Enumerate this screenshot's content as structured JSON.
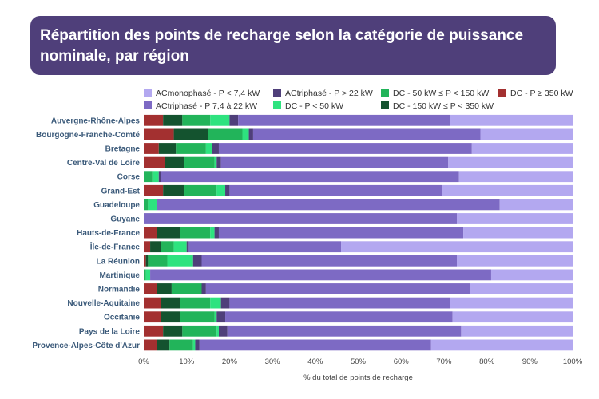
{
  "title": "Répartition des points de recharge selon la catégorie de puissance nominale, par région",
  "chart_data": {
    "type": "bar",
    "orientation": "horizontal",
    "stacked": true,
    "title": "Répartition des points de recharge selon la catégorie de puissance nominale, par région",
    "xlabel": "% du total de points de recharge",
    "ylabel": "",
    "xlim": [
      0,
      100
    ],
    "ticks": [
      "0%",
      "10%",
      "20%",
      "30%",
      "40%",
      "50%",
      "60%",
      "70%",
      "80%",
      "90%",
      "100%"
    ],
    "legend_position": "top",
    "legend": [
      {
        "name": "ACmonophasé - P < 7,4 kW",
        "color": "#b3a8f0"
      },
      {
        "name": "ACtriphasé - P 7,4 à 22 kW",
        "color": "#7d6ac4"
      },
      {
        "name": "ACtriphasé - P > 22 kW",
        "color": "#4f3f7a"
      },
      {
        "name": "DC - P < 50 kW",
        "color": "#2ee37f"
      },
      {
        "name": "DC - 50 kW ≤ P < 150 kW",
        "color": "#22b45a"
      },
      {
        "name": "DC - 150 kW ≤ P < 350 kW",
        "color": "#14532f"
      },
      {
        "name": "DC - P ≥ 350 kW",
        "color": "#a33030"
      }
    ],
    "stack_order": [
      "DC - P ≥ 350 kW",
      "DC - 150 kW ≤ P < 350 kW",
      "DC - 50 kW ≤ P < 150 kW",
      "DC - P < 50 kW",
      "ACtriphasé - P > 22 kW",
      "ACtriphasé - P 7,4 à 22 kW",
      "ACmonophasé - P < 7,4 kW"
    ],
    "categories": [
      "Auvergne-Rhône-Alpes",
      "Bourgogne-Franche-Comté",
      "Bretagne",
      "Centre-Val de Loire",
      "Corse",
      "Grand-Est",
      "Guadeloupe",
      "Guyane",
      "Hauts-de-France",
      "Île-de-France",
      "La Réunion",
      "Martinique",
      "Normandie",
      "Nouvelle-Aquitaine",
      "Occitanie",
      "Pays de la Loire",
      "Provence-Alpes-Côte d'Azur"
    ],
    "series": [
      {
        "name": "DC - P ≥ 350 kW",
        "values": [
          4.5,
          7.0,
          3.5,
          5.0,
          0,
          4.5,
          0,
          0,
          3.0,
          1.5,
          0.5,
          0,
          3.0,
          4.0,
          4.0,
          4.5,
          3.0
        ]
      },
      {
        "name": "DC - 150 kW ≤ P < 350 kW",
        "values": [
          4.5,
          8.0,
          4.0,
          4.5,
          0,
          5.0,
          0,
          0,
          5.5,
          2.5,
          0.5,
          0,
          3.5,
          4.5,
          4.5,
          4.5,
          3.0
        ]
      },
      {
        "name": "DC - 50 kW ≤ P < 150 kW",
        "values": [
          6.5,
          8.0,
          7.0,
          7.0,
          2.0,
          7.5,
          1.0,
          0,
          7.0,
          3.0,
          4.5,
          0.5,
          7.0,
          7.0,
          8.0,
          8.0,
          5.5
        ]
      },
      {
        "name": "DC - P < 50 kW",
        "values": [
          4.5,
          1.5,
          1.5,
          0.5,
          1.5,
          2.0,
          2.0,
          0,
          1.0,
          3.0,
          6.0,
          1.0,
          0,
          2.5,
          0.5,
          0.5,
          0.5
        ]
      },
      {
        "name": "ACtriphasé - P > 22 kW",
        "values": [
          2.0,
          1.0,
          1.5,
          1.0,
          0.5,
          1.0,
          0,
          0,
          1.0,
          0.5,
          2.0,
          0,
          1.0,
          2.0,
          2.0,
          2.0,
          1.0
        ]
      },
      {
        "name": "ACtriphasé - P 7,4 à 22 kW",
        "values": [
          49.5,
          53.0,
          59.0,
          53.0,
          69.5,
          49.5,
          80.0,
          73.0,
          57.0,
          35.5,
          59.5,
          79.5,
          61.5,
          51.5,
          53.0,
          54.5,
          54.0
        ]
      },
      {
        "name": "ACmonophasé - P < 7,4 kW",
        "values": [
          28.5,
          21.5,
          23.5,
          29.0,
          26.5,
          30.5,
          17.0,
          27.0,
          25.5,
          54.0,
          27.0,
          19.0,
          24.0,
          28.5,
          28.0,
          26.0,
          33.0
        ]
      }
    ]
  }
}
